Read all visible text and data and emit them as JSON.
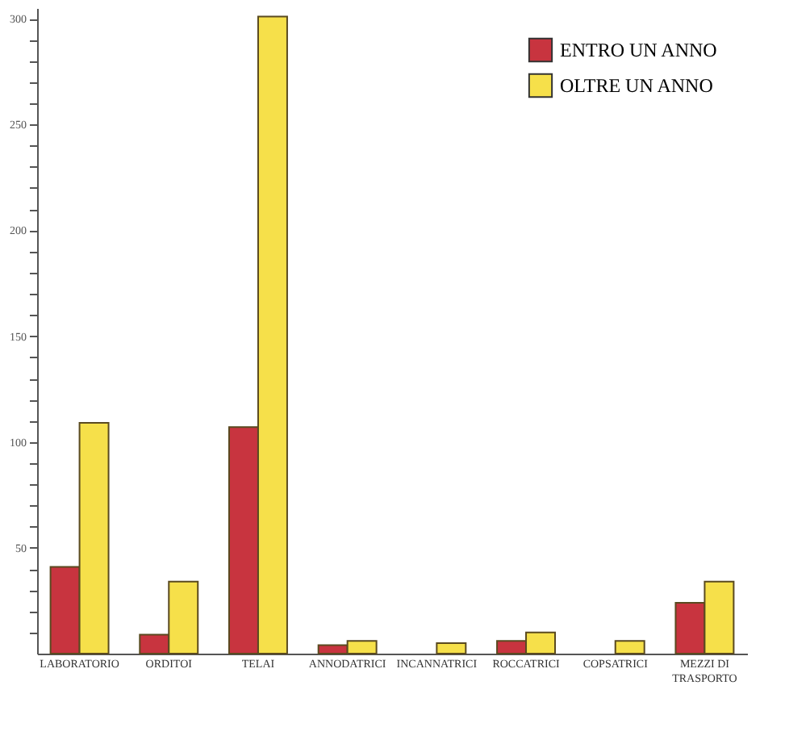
{
  "chart_data": {
    "type": "bar",
    "categories": [
      "LABORATORIO",
      "ORDITOI",
      "TELAI",
      "ANNODATRICI",
      "INCANNATRICI",
      "ROCCATRICI",
      "COPSATRICI",
      "MEZZI DI\nTRASPORTO"
    ],
    "series": [
      {
        "name": "ENTRO UN ANNO",
        "color": "#c8343f",
        "values": [
          41,
          9,
          107,
          4,
          null,
          6,
          null,
          24
        ]
      },
      {
        "name": "OLTRE UN ANNO",
        "color": "#f6e04a",
        "values": [
          109,
          34,
          301,
          6,
          5,
          10,
          6,
          34
        ]
      }
    ],
    "ylim": [
      0,
      305
    ],
    "yticks": [
      {
        "value": 10,
        "label": null
      },
      {
        "value": 20,
        "label": null
      },
      {
        "value": 30,
        "label": null
      },
      {
        "value": 40,
        "label": null
      },
      50,
      {
        "value": 60,
        "label": null
      },
      {
        "value": 70,
        "label": null
      },
      {
        "value": 80,
        "label": null
      },
      {
        "value": 90,
        "label": null
      },
      100,
      {
        "value": 110,
        "label": null
      },
      {
        "value": 120,
        "label": null
      },
      {
        "value": 130,
        "label": null
      },
      {
        "value": 140,
        "label": null
      },
      150,
      {
        "value": 160,
        "label": null
      },
      {
        "value": 170,
        "label": null
      },
      {
        "value": 180,
        "label": null
      },
      {
        "value": 190,
        "label": null
      },
      200,
      {
        "value": 210,
        "label": null
      },
      {
        "value": 220,
        "label": null
      },
      {
        "value": 230,
        "label": null
      },
      {
        "value": 240,
        "label": null
      },
      250,
      {
        "value": 260,
        "label": null
      },
      {
        "value": 270,
        "label": null
      },
      {
        "value": 280,
        "label": null
      },
      {
        "value": 290,
        "label": null
      },
      300
    ],
    "grid": false,
    "legend": "top right"
  }
}
